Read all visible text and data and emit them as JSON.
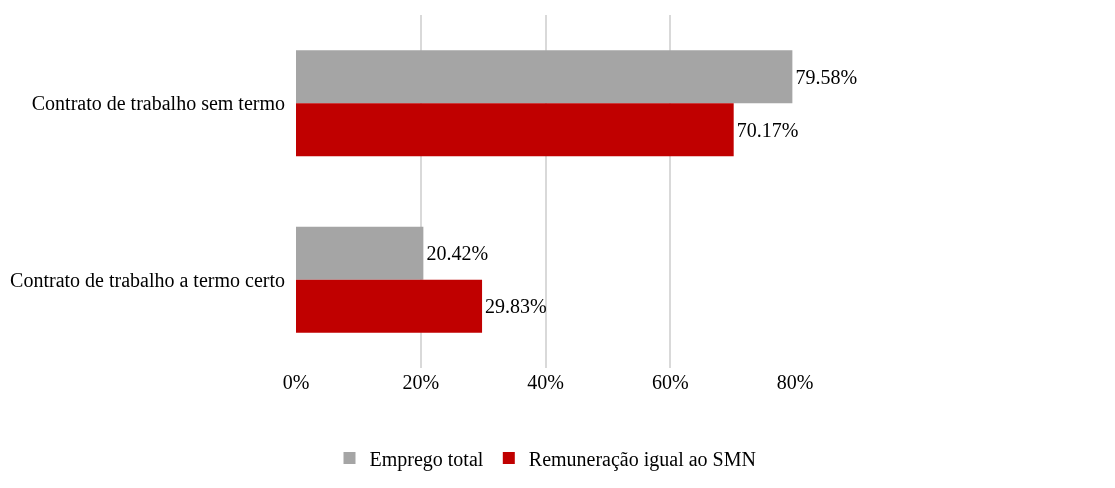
{
  "chart_data": {
    "type": "bar",
    "orientation": "horizontal",
    "categories": [
      "Contrato de trabalho sem termo",
      "Contrato de trabalho a termo certo"
    ],
    "series": [
      {
        "name": "Emprego total",
        "color": "#a5a5a5",
        "values": [
          79.58,
          20.42
        ],
        "value_labels": [
          "79.58%",
          "20.42%"
        ]
      },
      {
        "name": "Remuneração igual ao SMN",
        "color": "#c00000",
        "values": [
          70.17,
          29.83
        ],
        "value_labels": [
          "70.17%",
          "29.83%"
        ]
      }
    ],
    "xlim": [
      0,
      80
    ],
    "xticks": [
      {
        "value": 0,
        "label": "0%"
      },
      {
        "value": 20,
        "label": "20%"
      },
      {
        "value": 40,
        "label": "40%"
      },
      {
        "value": 60,
        "label": "60%"
      },
      {
        "value": 80,
        "label": "80%"
      }
    ],
    "grid": "x",
    "legend": "bottom"
  }
}
